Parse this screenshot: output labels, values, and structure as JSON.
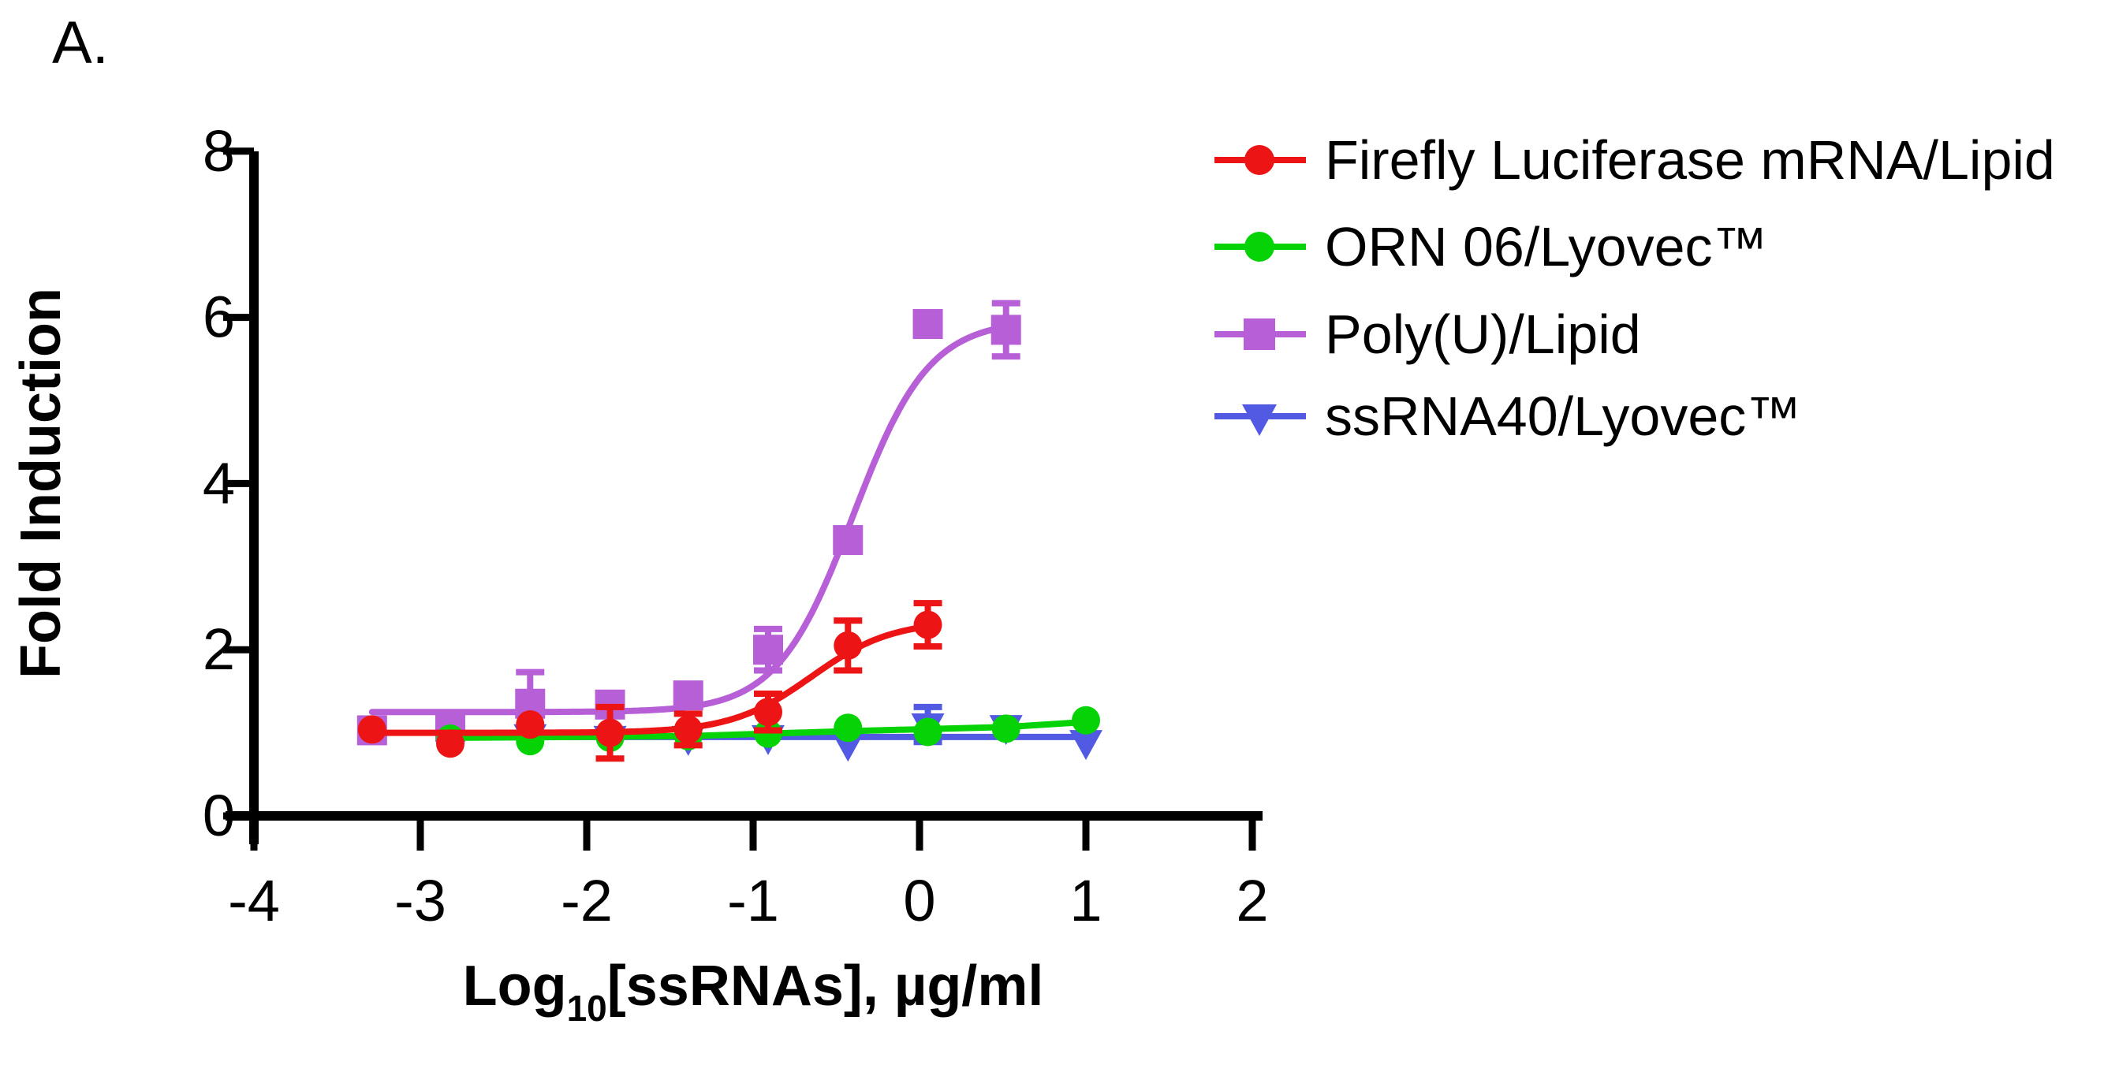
{
  "panel_label": "A.",
  "axes": {
    "x": {
      "title_prefix": "Log",
      "title_sub": "10",
      "title_suffix": "[ssRNAs], µg/ml",
      "ticks": [
        -4,
        -3,
        -2,
        -1,
        0,
        1,
        2
      ],
      "range": [
        -4,
        2
      ]
    },
    "y": {
      "title": "Fold Induction",
      "ticks": [
        0,
        2,
        4,
        6,
        8
      ],
      "range": [
        0,
        8
      ]
    }
  },
  "chart_data": {
    "type": "scatter",
    "grid": false,
    "legend_position": "right-top",
    "xlabel": "Log10[ssRNAs], ug/ml",
    "ylabel": "Fold Induction",
    "xlim": [
      -4,
      2
    ],
    "ylim": [
      0,
      8
    ],
    "series": [
      {
        "id": "firefly",
        "name": "Firefly Luciferase mRNA/Lipid",
        "marker": "circle",
        "color": "#EC1414",
        "z": 3,
        "points": [
          {
            "x": -3.29,
            "y": 1.04
          },
          {
            "x": -2.82,
            "y": 0.87
          },
          {
            "x": -2.34,
            "y": 1.1
          },
          {
            "x": -1.86,
            "y": 1.0,
            "err": 0.31
          },
          {
            "x": -1.39,
            "y": 1.04,
            "err": 0.19
          },
          {
            "x": -0.91,
            "y": 1.25,
            "err": 0.22
          },
          {
            "x": -0.43,
            "y": 2.05,
            "err": 0.3
          },
          {
            "x": 0.05,
            "y": 2.3,
            "err": 0.26
          }
        ],
        "fit": {
          "type": "4pl",
          "bottom": 1.0,
          "top": 2.35,
          "logEC50": -0.65,
          "hill": 1.8,
          "range": [
            -3.29,
            0.05
          ]
        }
      },
      {
        "id": "orn06",
        "name": "ORN 06/Lyovec™",
        "marker": "circle",
        "color": "#06D306",
        "z": 2,
        "points": [
          {
            "x": -2.82,
            "y": 0.93
          },
          {
            "x": -2.34,
            "y": 0.9
          },
          {
            "x": -1.86,
            "y": 0.94
          },
          {
            "x": -1.39,
            "y": 0.96
          },
          {
            "x": -0.91,
            "y": 0.99
          },
          {
            "x": -0.43,
            "y": 1.06
          },
          {
            "x": 0.05,
            "y": 1.01
          },
          {
            "x": 0.52,
            "y": 1.05
          },
          {
            "x": 1.0,
            "y": 1.15
          }
        ],
        "fit": {
          "type": "line",
          "points": [
            [
              -2.82,
              0.94
            ],
            [
              -1.39,
              0.96
            ],
            [
              -0.43,
              1.02
            ],
            [
              0.52,
              1.07
            ],
            [
              1.0,
              1.13
            ]
          ]
        }
      },
      {
        "id": "polyu",
        "name": "Poly(U)/Lipid",
        "marker": "square",
        "color": "#B75FD7",
        "z": 0,
        "points": [
          {
            "x": -3.29,
            "y": 1.03
          },
          {
            "x": -2.82,
            "y": 1.07
          },
          {
            "x": -2.34,
            "y": 1.35,
            "err": 0.38
          },
          {
            "x": -1.86,
            "y": 1.34
          },
          {
            "x": -1.39,
            "y": 1.45
          },
          {
            "x": -0.91,
            "y": 2.0,
            "err": 0.25
          },
          {
            "x": -0.43,
            "y": 3.32
          },
          {
            "x": 0.05,
            "y": 5.92
          },
          {
            "x": 0.52,
            "y": 5.85,
            "err": 0.32
          }
        ],
        "fit": {
          "type": "4pl",
          "bottom": 1.25,
          "top": 5.97,
          "logEC50": -0.4,
          "hill": 1.9,
          "range": [
            -3.29,
            0.52
          ]
        }
      },
      {
        "id": "ssrna40",
        "name": "ssRNA40/Lyovec™",
        "marker": "triangle-down",
        "color": "#525AE4",
        "z": 1,
        "points": [
          {
            "x": -2.34,
            "y": 0.97
          },
          {
            "x": -1.86,
            "y": 0.95
          },
          {
            "x": -1.39,
            "y": 0.95
          },
          {
            "x": -0.91,
            "y": 0.96
          },
          {
            "x": -0.43,
            "y": 0.88
          },
          {
            "x": 0.05,
            "y": 1.1,
            "err": 0.21
          },
          {
            "x": 0.52,
            "y": 1.08
          },
          {
            "x": 1.0,
            "y": 0.9
          }
        ],
        "fit": {
          "type": "line",
          "points": [
            [
              -2.34,
              0.95
            ],
            [
              1.02,
              0.95
            ]
          ]
        }
      }
    ]
  }
}
